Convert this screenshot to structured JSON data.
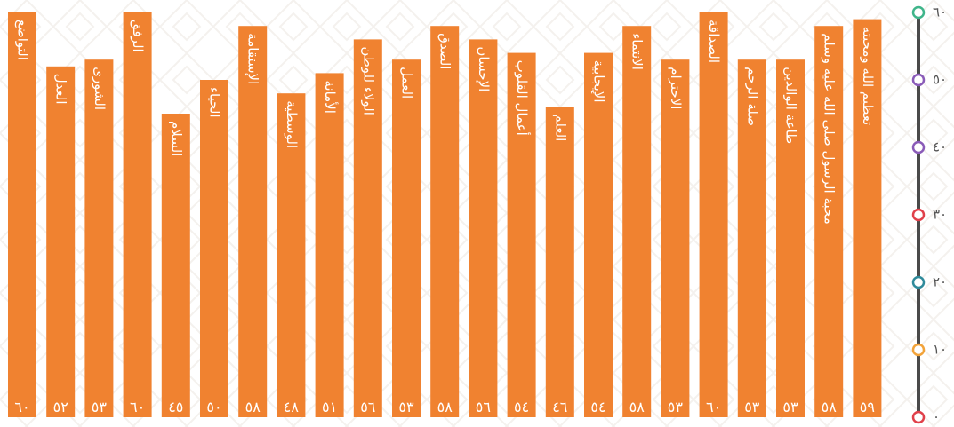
{
  "chart_data": {
    "type": "bar",
    "orientation": "vertical",
    "categories": [
      "التواضع",
      "العدل",
      "الشورى",
      "الرفق",
      "السلام",
      "الحياء",
      "الإستقامة",
      "الوسطية",
      "الأمانة",
      "الولاء للوطن",
      "العمل",
      "الصدق",
      "الإحسان",
      "أعمال القلوب",
      "العلم",
      "الإيجابية",
      "الانتماء",
      "الاحترام",
      "الصداقة",
      "صلة الرحم",
      "طاعة الوالدين",
      "محبة الرسول صلى الله عليه وسلم",
      "تعظيم الله ومحبته"
    ],
    "values": [
      60,
      52,
      53,
      60,
      45,
      50,
      58,
      48,
      51,
      56,
      53,
      58,
      56,
      54,
      46,
      54,
      58,
      53,
      60,
      53,
      53,
      58,
      59
    ],
    "value_labels": [
      "٦٠",
      "٥٢",
      "٥٣",
      "٦٠",
      "٤٥",
      "٥٠",
      "٥٨",
      "٤٨",
      "٥١",
      "٥٦",
      "٥٣",
      "٥٨",
      "٥٦",
      "٥٤",
      "٤٦",
      "٥٤",
      "٥٨",
      "٥٣",
      "٦٠",
      "٥٣",
      "٥٣",
      "٥٨",
      "٥٩"
    ],
    "y_axis": {
      "position": "right",
      "ylim": [
        0,
        60
      ],
      "ticks": [
        {
          "value": 0,
          "label": "٠",
          "color": "#E0404A"
        },
        {
          "value": 10,
          "label": "١٠",
          "color": "#F2A33A"
        },
        {
          "value": 20,
          "label": "٢٠",
          "color": "#2F8A9A"
        },
        {
          "value": 30,
          "label": "٣٠",
          "color": "#E0404A"
        },
        {
          "value": 40,
          "label": "٤٠",
          "color": "#8A5BB8"
        },
        {
          "value": 50,
          "label": "٥٠",
          "color": "#8A5BB8"
        },
        {
          "value": 60,
          "label": "٦٠",
          "color": "#3FB58A"
        }
      ]
    },
    "bar_color": "#F08230",
    "grid": false,
    "title": "",
    "xlabel": "",
    "ylabel": ""
  }
}
